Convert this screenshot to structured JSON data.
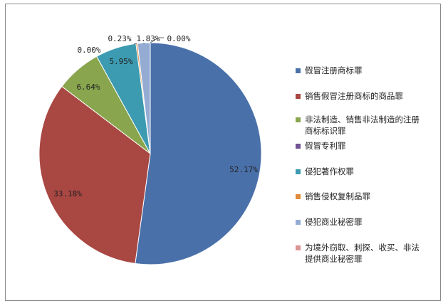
{
  "chart_data": {
    "type": "pie",
    "title": "",
    "start_angle_deg": 0,
    "direction": "clockwise",
    "slices": [
      {
        "name": "假冒注册商标罪",
        "value": 52.17,
        "label": "52.17%",
        "color": "#4a70aa"
      },
      {
        "name": "销售假冒注册商标的商品罪",
        "value": 33.18,
        "label": "33.18%",
        "color": "#a94743"
      },
      {
        "name": "非法制造、销售非法制造的注册商标标识罪",
        "value": 6.64,
        "label": "6.64%",
        "color": "#89a64e"
      },
      {
        "name": "假冒专利罪",
        "value": 0.0,
        "label": "0.00%",
        "color": "#6f5395"
      },
      {
        "name": "侵犯著作权罪",
        "value": 5.95,
        "label": "5.95%",
        "color": "#3c9bb1"
      },
      {
        "name": "销售侵权复制品罪",
        "value": 0.23,
        "label": "0.23%",
        "color": "#e08a3b"
      },
      {
        "name": "侵犯商业秘密罪",
        "value": 1.83,
        "label": "1.83%",
        "color": "#94acd4"
      },
      {
        "name": "为境外窃取、刺探、收买、非法提供商业秘密罪",
        "value": 0.0,
        "label": "0.00%",
        "color": "#d99694"
      }
    ],
    "legend": {
      "position": "right",
      "items": [
        {
          "text": [
            "假冒注册商标罪"
          ],
          "color": "#4a70aa"
        },
        {
          "text": [
            "销售假冒注册商标的商品罪"
          ],
          "color": "#a94743"
        },
        {
          "text": [
            "非法制造、销售非法制造的注册",
            "商标标识罪"
          ],
          "color": "#89a64e"
        },
        {
          "text": [
            "假冒专利罪"
          ],
          "color": "#6f5395"
        },
        {
          "text": [
            "侵犯著作权罪"
          ],
          "color": "#3c9bb1"
        },
        {
          "text": [
            "销售侵权复制品罪"
          ],
          "color": "#e08a3b"
        },
        {
          "text": [
            "侵犯商业秘密罪"
          ],
          "color": "#94acd4"
        },
        {
          "text": [
            "为境外窃取、刺探、收买、非法",
            "提供商业秘密罪"
          ],
          "color": "#d99694"
        }
      ]
    }
  }
}
